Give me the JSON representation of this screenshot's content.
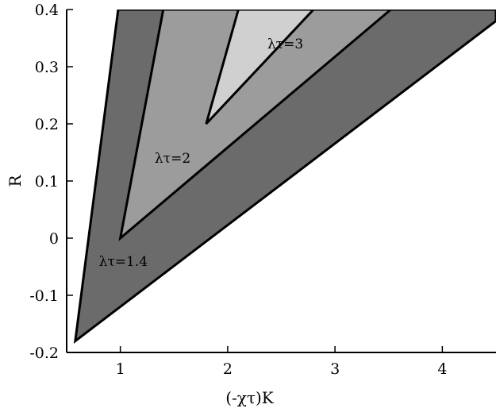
{
  "chart_data": {
    "type": "area",
    "xlabel": "(-χτ)K",
    "ylabel": "R",
    "xlim": [
      0.5,
      4.5
    ],
    "ylim": [
      -0.2,
      0.4
    ],
    "x_ticks": [
      1,
      2,
      3,
      4
    ],
    "y_ticks": [
      -0.2,
      -0.1,
      0,
      0.1,
      0.2,
      0.3,
      0.4
    ],
    "x_tick_labels": [
      "1",
      "2",
      "3",
      "4"
    ],
    "y_tick_labels": [
      "-0.2",
      "-0.1",
      "0",
      "0.1",
      "0.2",
      "0.3",
      "0.4"
    ],
    "grid": false,
    "regions": [
      {
        "label": "λτ=1.4",
        "color": "#6b6b6b",
        "vertex": [
          0.58,
          -0.18
        ],
        "left_edge_top": [
          0.98,
          0.4
        ],
        "right_edge_top": [
          4.5,
          0.38
        ],
        "label_at": [
          0.8,
          -0.04
        ]
      },
      {
        "label": "λτ=2",
        "color": "#9c9c9c",
        "vertex": [
          1.0,
          0.0
        ],
        "left_edge_top": [
          1.4,
          0.4
        ],
        "right_edge_top": [
          3.52,
          0.4
        ],
        "label_at": [
          1.32,
          0.14
        ]
      },
      {
        "label": "λτ=3",
        "color": "#d0d0d0",
        "vertex": [
          1.8,
          0.2
        ],
        "left_edge_top": [
          2.1,
          0.4
        ],
        "right_edge_top": [
          2.8,
          0.4
        ],
        "label_at": [
          2.37,
          0.34
        ]
      }
    ]
  }
}
